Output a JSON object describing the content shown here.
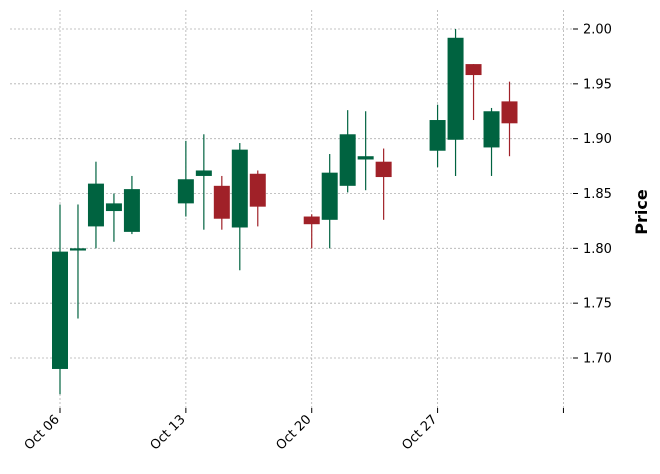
{
  "chart_data": {
    "type": "candlestick",
    "title": "",
    "xlabel": "",
    "ylabel": "Price",
    "ylim": [
      1.65,
      2.015
    ],
    "y_ticks": [
      1.7,
      1.75,
      1.8,
      1.85,
      1.9,
      1.95,
      2.0
    ],
    "y_tick_labels": [
      "1.70",
      "1.75",
      "1.80",
      "1.85",
      "1.90",
      "1.95",
      "2.00"
    ],
    "y_axis_position": "right",
    "x_ticks": [
      "Oct 06",
      "Oct 13",
      "Oct 20",
      "Oct 27",
      ""
    ],
    "x_tick_dates": [
      "2025-10-06",
      "2025-10-13",
      "2025-10-20",
      "2025-10-27",
      "2025-11-03"
    ],
    "grid": true,
    "colors": {
      "up": "#006340",
      "down": "#a02128",
      "grid": "#b0b0b0"
    },
    "candles": [
      {
        "date": "2025-10-06",
        "open": 1.69,
        "high": 1.84,
        "low": 1.667,
        "close": 1.797
      },
      {
        "date": "2025-10-07",
        "open": 1.798,
        "high": 1.84,
        "low": 1.736,
        "close": 1.8
      },
      {
        "date": "2025-10-08",
        "open": 1.82,
        "high": 1.879,
        "low": 1.8,
        "close": 1.859
      },
      {
        "date": "2025-10-09",
        "open": 1.834,
        "high": 1.85,
        "low": 1.806,
        "close": 1.841
      },
      {
        "date": "2025-10-10",
        "open": 1.815,
        "high": 1.866,
        "low": 1.813,
        "close": 1.854
      },
      {
        "date": "2025-10-13",
        "open": 1.841,
        "high": 1.898,
        "low": 1.829,
        "close": 1.863
      },
      {
        "date": "2025-10-14",
        "open": 1.866,
        "high": 1.904,
        "low": 1.817,
        "close": 1.871
      },
      {
        "date": "2025-10-15",
        "open": 1.857,
        "high": 1.866,
        "low": 1.817,
        "close": 1.827
      },
      {
        "date": "2025-10-16",
        "open": 1.819,
        "high": 1.896,
        "low": 1.78,
        "close": 1.89
      },
      {
        "date": "2025-10-17",
        "open": 1.868,
        "high": 1.871,
        "low": 1.82,
        "close": 1.838
      },
      {
        "date": "2025-10-20",
        "open": 1.829,
        "high": 1.831,
        "low": 1.8,
        "close": 1.822
      },
      {
        "date": "2025-10-21",
        "open": 1.826,
        "high": 1.886,
        "low": 1.8,
        "close": 1.869
      },
      {
        "date": "2025-10-22",
        "open": 1.857,
        "high": 1.926,
        "low": 1.851,
        "close": 1.904
      },
      {
        "date": "2025-10-23",
        "open": 1.881,
        "high": 1.925,
        "low": 1.853,
        "close": 1.884
      },
      {
        "date": "2025-10-24",
        "open": 1.879,
        "high": 1.891,
        "low": 1.826,
        "close": 1.865
      },
      {
        "date": "2025-10-27",
        "open": 1.889,
        "high": 1.931,
        "low": 1.874,
        "close": 1.917
      },
      {
        "date": "2025-10-28",
        "open": 1.899,
        "high": 2.0,
        "low": 1.866,
        "close": 1.992
      },
      {
        "date": "2025-10-29",
        "open": 1.968,
        "high": 1.968,
        "low": 1.917,
        "close": 1.958
      },
      {
        "date": "2025-10-30",
        "open": 1.892,
        "high": 1.928,
        "low": 1.866,
        "close": 1.925
      },
      {
        "date": "2025-10-31",
        "open": 1.934,
        "high": 1.952,
        "low": 1.884,
        "close": 1.914
      }
    ]
  }
}
